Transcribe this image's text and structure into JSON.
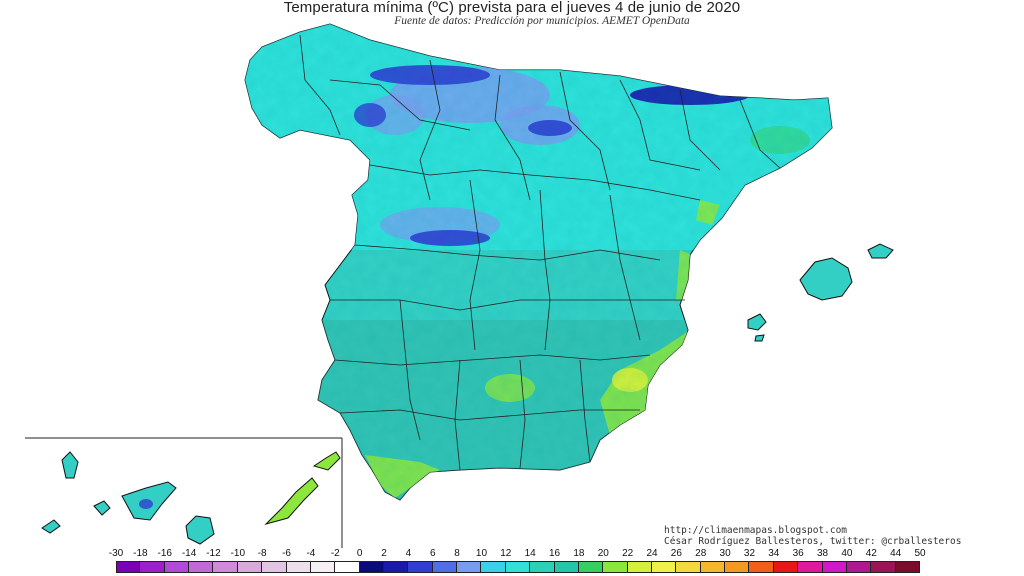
{
  "title": "Temperatura mínima (ºC) prevista para el jueves 4 de junio de 2020",
  "subtitle": "Fuente de datos: Predicción por municipios. AEMET OpenData",
  "credits": {
    "url": "http://climaenmapas.blogspot.com",
    "author": "César Rodríguez Ballesteros, twitter: @crballesteros"
  },
  "legend": {
    "labels": [
      "-30",
      "-18",
      "-16",
      "-14",
      "-12",
      "-10",
      "-8",
      "-6",
      "-4",
      "-2",
      "0",
      "2",
      "4",
      "6",
      "8",
      "10",
      "12",
      "14",
      "16",
      "18",
      "20",
      "22",
      "24",
      "26",
      "28",
      "30",
      "32",
      "34",
      "36",
      "38",
      "40",
      "42",
      "44",
      "50"
    ],
    "colors": [
      "#7a00b8",
      "#9b1fcc",
      "#b04ad8",
      "#c06ad6",
      "#cf8ad8",
      "#d9a8dc",
      "#e3c4e3",
      "#ece0ec",
      "#f4f0f4",
      "#ffffff",
      "#0a0a7a",
      "#1a1aa8",
      "#2f3fd0",
      "#4f6fe8",
      "#7a9cf0",
      "#3ad0e8",
      "#33e0d8",
      "#2cd0b8",
      "#26c4a8",
      "#33d060",
      "#8ce63c",
      "#d4f03c",
      "#f0f04a",
      "#f4d840",
      "#f4b830",
      "#f49a20",
      "#f06018",
      "#e81818",
      "#e0189c",
      "#d018c8",
      "#b01890",
      "#9c1458",
      "#7a0c2c"
    ]
  }
}
